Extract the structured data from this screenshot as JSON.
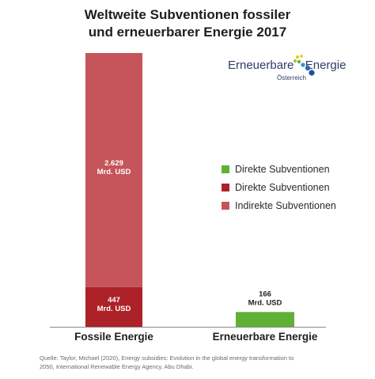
{
  "title": "Weltweite Subventionen fossiler\nund erneuerbarer Energie 2017",
  "logo": {
    "word_part1": "Erneuerbare",
    "word_part2": "Energie",
    "sub": "Österreich"
  },
  "legend": [
    {
      "label": "Direkte Subventionen",
      "color": "#5fb135"
    },
    {
      "label": "Direkte Subventionen",
      "color": "#ad2128"
    },
    {
      "label": "Indirekte Subventionen",
      "color": "#c6545b"
    }
  ],
  "source": "Quelle: Taylor, Michael (2020), Energy subsidies: Evolution in the global energy transformation to 2050, International Renewable Energy Agency, Abu Dhabi.",
  "chart_data": {
    "type": "bar",
    "stacked": true,
    "categories": [
      "Fossile Energie",
      "Erneuerbare Energie"
    ],
    "unit": "Mrd. USD",
    "series": [
      {
        "name": "Direkte Subventionen",
        "color": "#ad2128",
        "values": [
          447,
          0
        ]
      },
      {
        "name": "Indirekte Subventionen",
        "color": "#c6545b",
        "values": [
          2629,
          0
        ]
      },
      {
        "name": "Direkte Subventionen",
        "color": "#5fb135",
        "values": [
          0,
          166
        ]
      }
    ],
    "data_labels": [
      {
        "category": 0,
        "series": 0,
        "value": "447",
        "unit": "Mrd. USD"
      },
      {
        "category": 0,
        "series": 1,
        "value": "2.629",
        "unit": "Mrd. USD"
      },
      {
        "category": 1,
        "series": 2,
        "value": "166",
        "unit": "Mrd. USD"
      }
    ],
    "ylim": [
      0,
      3076
    ],
    "legend_position": "right"
  }
}
